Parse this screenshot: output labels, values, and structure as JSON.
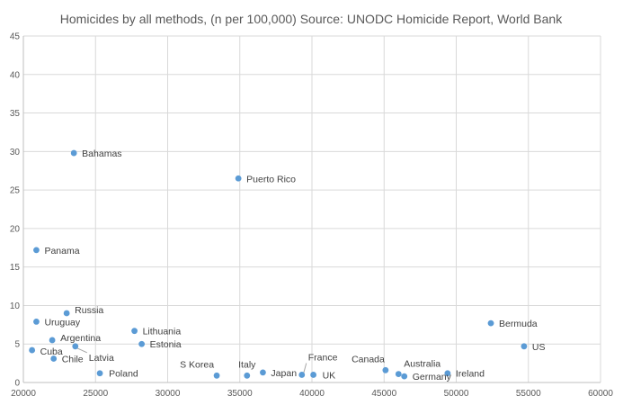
{
  "chart_data": {
    "type": "scatter",
    "title": "Homicides by all methods, (n per 100,000) Source: UNODC Homicide Report, World Bank",
    "xlabel": "",
    "ylabel": "",
    "xlim": [
      20000,
      60000
    ],
    "ylim": [
      0,
      45
    ],
    "x_ticks": [
      20000,
      25000,
      30000,
      35000,
      40000,
      45000,
      50000,
      55000,
      60000
    ],
    "y_ticks": [
      0,
      5,
      10,
      15,
      20,
      25,
      30,
      35,
      40,
      45
    ],
    "grid": true,
    "legend": "none",
    "marker_color": "#5b9bd5",
    "points": [
      {
        "label": "Bahamas",
        "x": 23500,
        "y": 29.8
      },
      {
        "label": "Puerto Rico",
        "x": 34900,
        "y": 26.5
      },
      {
        "label": "Panama",
        "x": 20900,
        "y": 17.2
      },
      {
        "label": "Russia",
        "x": 23000,
        "y": 9.0
      },
      {
        "label": "Uruguay",
        "x": 20900,
        "y": 7.9
      },
      {
        "label": "Lithuania",
        "x": 27700,
        "y": 6.7
      },
      {
        "label": "Argentina",
        "x": 22000,
        "y": 5.5
      },
      {
        "label": "Estonia",
        "x": 28200,
        "y": 5.0
      },
      {
        "label": "Latvia",
        "x": 23600,
        "y": 4.7
      },
      {
        "label": "Cuba",
        "x": 20600,
        "y": 4.2
      },
      {
        "label": "Chile",
        "x": 22100,
        "y": 3.1
      },
      {
        "label": "Poland",
        "x": 25300,
        "y": 1.2
      },
      {
        "label": "S Korea",
        "x": 33400,
        "y": 0.9
      },
      {
        "label": "Italy",
        "x": 35500,
        "y": 0.9
      },
      {
        "label": "Japan",
        "x": 36600,
        "y": 1.3
      },
      {
        "label": "France",
        "x": 39300,
        "y": 1.0
      },
      {
        "label": "UK",
        "x": 40100,
        "y": 1.0
      },
      {
        "label": "Canada",
        "x": 45100,
        "y": 1.6
      },
      {
        "label": "Australia",
        "x": 46000,
        "y": 1.1
      },
      {
        "label": "Germany",
        "x": 46400,
        "y": 0.8
      },
      {
        "label": "Ireland",
        "x": 49400,
        "y": 1.2
      },
      {
        "label": "Bermuda",
        "x": 52400,
        "y": 7.7
      },
      {
        "label": "US",
        "x": 54700,
        "y": 4.7
      }
    ]
  }
}
